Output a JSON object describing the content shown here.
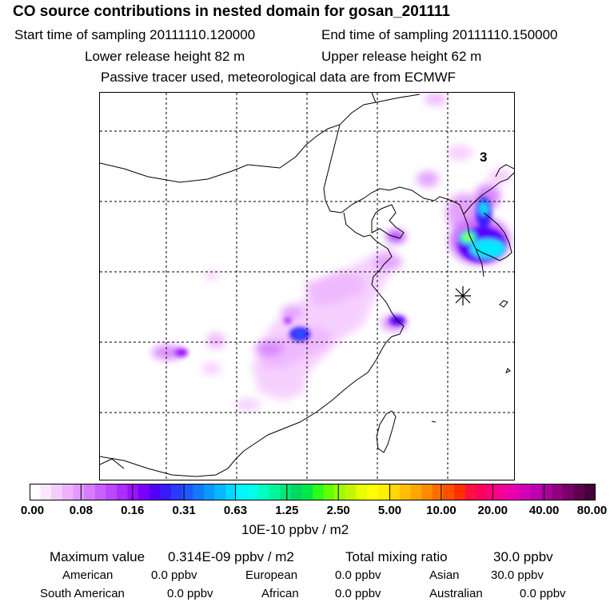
{
  "header": {
    "title": "CO  source contributions in nested domain for gosan_201111",
    "start_label": "Start time of sampling 20111110.120000",
    "end_label": "End time of sampling 20111110.150000",
    "lower_label": "Lower release height   82 m",
    "upper_label": "Upper release height   62 m",
    "note": "Passive tracer used, meteorological data are from ECMWF"
  },
  "map": {
    "marker_label": "3",
    "station_symbol": "asterisk",
    "colors": {
      "coast": "#000000",
      "grid": "#000000"
    }
  },
  "legend": {
    "tick_labels": [
      "0.00",
      "0.08",
      "0.16",
      "0.31",
      "0.63",
      "1.25",
      "2.50",
      "5.00",
      "10.00",
      "20.00",
      "40.00",
      "80.00"
    ],
    "unit": "10E-10 ppbv / m2",
    "colors": [
      "#ffffff",
      "#fbe6ff",
      "#f5ccff",
      "#eeb2ff",
      "#e199ff",
      "#d57dff",
      "#c862ff",
      "#bb47ff",
      "#ad2cff",
      "#9b11ff",
      "#7a00ff",
      "#5500ff",
      "#3a1aff",
      "#2a3aff",
      "#1a5aff",
      "#1279ff",
      "#0a99ff",
      "#06b8ff",
      "#00d8ff",
      "#00f5ff",
      "#00ffea",
      "#00ffc0",
      "#00f59c",
      "#00e87a",
      "#00d860",
      "#00e84a",
      "#2aff1a",
      "#66ff00",
      "#99ff00",
      "#c4f500",
      "#e8ff00",
      "#ffff00",
      "#fff000",
      "#ffd800",
      "#ffbf00",
      "#ffa600",
      "#ff8c00",
      "#ff6e00",
      "#ff5000",
      "#ff3000",
      "#ff1040",
      "#ff0060",
      "#ff0080",
      "#f5009a",
      "#e600b0",
      "#d400b8",
      "#bf00b0",
      "#a80098",
      "#900080",
      "#780066",
      "#5e004c",
      "#44003a"
    ]
  },
  "stats": {
    "max_label": "Maximum value",
    "max_value": "0.314E-09 ppbv / m2",
    "total_label": "Total mixing ratio",
    "total_value": "30.0 ppbv",
    "regions": [
      {
        "name": "American",
        "value": "0.0 ppbv"
      },
      {
        "name": "European",
        "value": "0.0 ppbv"
      },
      {
        "name": "Asian",
        "value": "30.0 ppbv"
      },
      {
        "name": "South American",
        "value": "0.0 ppbv"
      },
      {
        "name": "African",
        "value": "0.0 ppbv"
      },
      {
        "name": "Australian",
        "value": "0.0 ppbv"
      }
    ]
  }
}
